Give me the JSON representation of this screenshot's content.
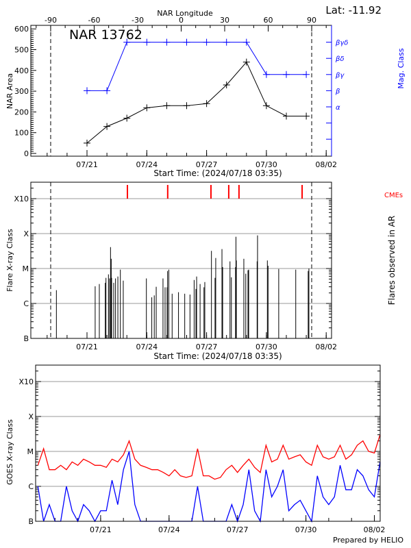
{
  "header": {
    "lat_label": "Lat: -11.92",
    "region_title": "NAR 13762"
  },
  "colors": {
    "area": "#000000",
    "mag_class": "#0000ff",
    "cme": "#ff0000",
    "goes_long": "#ff0000",
    "goes_short": "#0000ff",
    "grid": "#999999"
  },
  "chart_data": [
    {
      "type": "line",
      "title": "NAR 13762",
      "xlabel": "Start Time: (2024/07/18 03:35)",
      "x2label": "NAR Longitude",
      "ylabel": "NAR Area",
      "y2label": "Mag. Class",
      "ylim": [
        0,
        600
      ],
      "yticks": [
        "0",
        "100",
        "200",
        "300",
        "400",
        "500",
        "600"
      ],
      "x2lim": [
        -90,
        90
      ],
      "x2ticks": [
        "-90",
        "-60",
        "-30",
        "0",
        "30",
        "60",
        "90"
      ],
      "xticks": [
        "07/21",
        "07/24",
        "07/27",
        "07/30",
        "08/02"
      ],
      "mag_class_levels": [
        "α",
        "β",
        "βγ",
        "βδ",
        "βγδ"
      ],
      "x": [
        "07/21",
        "07/22",
        "07/23",
        "07/24",
        "07/25",
        "07/26",
        "07/27",
        "07/28",
        "07/29",
        "07/30",
        "07/31",
        "08/01"
      ],
      "series": [
        {
          "values": [
            50,
            130,
            170,
            220,
            230,
            230,
            240,
            330,
            440,
            230,
            180,
            180
          ]
        },
        {
          "values": [
            "β",
            "β",
            "βγδ",
            "βγδ",
            "βγδ",
            "βγδ",
            "βγδ",
            "βγδ",
            "βγδ",
            "βγ",
            "βγ",
            "βγ"
          ]
        }
      ],
      "limb_markers_longitude": [
        -90,
        90
      ]
    },
    {
      "type": "bar",
      "xlabel": "Start Time: (2024/07/18 03:35)",
      "ylabel": "Flare X-ray Class",
      "y2label": "Flares observed in AR",
      "cme_label": "CMEs",
      "yticks": [
        "B",
        "C",
        "M",
        "X",
        "X10"
      ],
      "xticks": [
        "07/21",
        "07/24",
        "07/27",
        "07/30",
        "08/02"
      ],
      "cmes": [
        "07/23 00:40",
        "07/25 01:10",
        "07/27 05:15",
        "07/28 02:40",
        "07/28 15:00",
        "07/31 19:00"
      ],
      "flares": [
        [
          "07/19 11:10",
          "C2.4"
        ],
        [
          "07/21 09:50",
          "C3.1"
        ],
        [
          "07/21 14:50",
          "C3.6"
        ],
        [
          "07/21 22:00",
          "C3.9"
        ],
        [
          "07/21 22:50",
          "C5.4"
        ],
        [
          "07/22 01:50",
          "C6.8"
        ],
        [
          "07/22 03:10",
          "C5.2"
        ],
        [
          "07/22 04:20",
          "M4.1"
        ],
        [
          "07/22 05:10",
          "M1.9"
        ],
        [
          "07/22 05:40",
          "C5.4"
        ],
        [
          "07/22 08:10",
          "C3.9"
        ],
        [
          "07/22 10:20",
          "C5.2"
        ],
        [
          "07/22 13:10",
          "C5.9"
        ],
        [
          "07/22 16:10",
          "C9.3"
        ],
        [
          "07/22 19:40",
          "C4.5"
        ],
        [
          "07/23 23:30",
          "C5.2"
        ],
        [
          "07/24 06:00",
          "C1.5"
        ],
        [
          "07/24 09:00",
          "C1.7"
        ],
        [
          "07/24 11:20",
          "C3.0"
        ],
        [
          "07/24 19:30",
          "C5.2"
        ],
        [
          "07/24 22:00",
          "C2.9"
        ],
        [
          "07/25 00:30",
          "C2.9"
        ],
        [
          "07/25 01:00",
          "C8.5"
        ],
        [
          "07/25 02:30",
          "C9.3"
        ],
        [
          "07/25 06:30",
          "C1.9"
        ],
        [
          "07/25 14:10",
          "C2.1"
        ],
        [
          "07/25 21:40",
          "C1.9"
        ],
        [
          "07/26 04:00",
          "C1.8"
        ],
        [
          "07/26 09:00",
          "C4.7"
        ],
        [
          "07/26 11:10",
          "C2.6"
        ],
        [
          "07/26 12:00",
          "C5.9"
        ],
        [
          "07/26 16:10",
          "C3.6"
        ],
        [
          "07/26 20:50",
          "C2.9"
        ],
        [
          "07/26 21:50",
          "C4.1"
        ],
        [
          "07/27 05:50",
          "M3.2"
        ],
        [
          "07/27 10:10",
          "C5.4"
        ],
        [
          "07/27 11:00",
          "M2.0"
        ],
        [
          "07/27 18:30",
          "M3.6"
        ],
        [
          "07/27 19:20",
          "M1.1"
        ],
        [
          "07/28 04:10",
          "M1.6"
        ],
        [
          "07/28 05:50",
          "C5.6"
        ],
        [
          "07/28 10:50",
          "M1.1"
        ],
        [
          "07/28 11:20",
          "M8.1"
        ],
        [
          "07/28 11:50",
          "M1.7"
        ],
        [
          "07/28 20:50",
          "M1.9"
        ],
        [
          "07/28 23:10",
          "C7.1"
        ],
        [
          "07/29 01:50",
          "C8.9"
        ],
        [
          "07/29 02:40",
          "C9.3"
        ],
        [
          "07/29 12:50",
          "M1.6"
        ],
        [
          "07/29 13:20",
          "M8.9"
        ],
        [
          "07/30 01:10",
          "M1.7"
        ],
        [
          "07/30 02:00",
          "M1.2"
        ],
        [
          "07/30 14:50",
          "C9.7"
        ],
        [
          "07/31 11:20",
          "C9.3"
        ],
        [
          "08/01 02:20",
          "C8.5"
        ],
        [
          "08/01 03:10",
          "M1.0"
        ]
      ]
    },
    {
      "type": "line",
      "ylabel": "GOES X-ray Class",
      "yticks": [
        "B",
        "C",
        "M",
        "X",
        "X10"
      ],
      "xticks": [
        "07/21",
        "07/24",
        "07/27",
        "07/30",
        "08/02"
      ],
      "times": [
        "07/18 06:00",
        "07/18 12:00",
        "07/18 18:00",
        "07/19 00:00",
        "07/19 06:00",
        "07/19 12:00",
        "07/19 18:00",
        "07/20 00:00",
        "07/20 06:00",
        "07/20 12:00",
        "07/20 18:00",
        "07/21 00:00",
        "07/21 06:00",
        "07/21 12:00",
        "07/21 18:00",
        "07/22 00:00",
        "07/22 06:00",
        "07/22 12:00",
        "07/22 18:00",
        "07/23 00:00",
        "07/23 06:00",
        "07/23 12:00",
        "07/23 18:00",
        "07/24 00:00",
        "07/24 06:00",
        "07/24 12:00",
        "07/24 18:00",
        "07/25 00:00",
        "07/25 06:00",
        "07/25 12:00",
        "07/25 18:00",
        "07/26 00:00",
        "07/26 06:00",
        "07/26 12:00",
        "07/26 18:00",
        "07/27 00:00",
        "07/27 06:00",
        "07/27 12:00",
        "07/27 18:00",
        "07/28 00:00",
        "07/28 06:00",
        "07/28 12:00",
        "07/28 18:00",
        "07/29 00:00",
        "07/29 06:00",
        "07/29 12:00",
        "07/29 18:00",
        "07/30 00:00",
        "07/30 06:00",
        "07/30 12:00",
        "07/30 18:00",
        "07/31 00:00",
        "07/31 06:00",
        "07/31 12:00",
        "07/31 18:00",
        "08/01 00:00",
        "08/01 06:00",
        "08/01 12:00",
        "08/01 18:00",
        "08/02 00:00",
        "08/02 06:00"
      ],
      "series": [
        {
          "values": [
            "C4.0",
            "M1.2",
            "C3.0",
            "C3.0",
            "C4.0",
            "C3.0",
            "C5.0",
            "C4.0",
            "C6.0",
            "C5.0",
            "C4.0",
            "C4.0",
            "C3.5",
            "C6.0",
            "C5.0",
            "C8.0",
            "M2.0",
            "C6.0",
            "C4.0",
            "C3.5",
            "C3.0",
            "C3.0",
            "C2.5",
            "C2.0",
            "C3.0",
            "C2.0",
            "C1.8",
            "C2.0",
            "M1.2",
            "C2.0",
            "C2.0",
            "C1.6",
            "C1.8",
            "C3.0",
            "C4.0",
            "C2.5",
            "C4.0",
            "C6.0",
            "C3.5",
            "C2.5",
            "M1.5",
            "C5.0",
            "C6.0",
            "M1.5",
            "C6.0",
            "C7.0",
            "C8.0",
            "C5.0",
            "C4.0",
            "M1.5",
            "C7.0",
            "C6.0",
            "C7.0",
            "M1.5",
            "C6.0",
            "C8.0",
            "M1.5",
            "M2.0",
            "M1.0",
            "C9.0",
            "M3.0"
          ]
        },
        {
          "values": [
            "C1.0",
            "B1.0",
            "B3.0",
            "B1.0",
            "B1.0",
            "C1.0",
            "B2.0",
            "B1.0",
            "B3.0",
            "B2.0",
            "B1.0",
            "B2.0",
            "B2.0",
            "C1.5",
            "B3.0",
            "C3.0",
            "M1.0",
            "B3.0",
            "B1.0",
            "B1.0",
            "B1.0",
            "B1.0",
            "B1.0",
            "B1.0",
            "B1.0",
            "B1.0",
            "B1.0",
            "B1.0",
            "C1.0",
            "B1.0",
            "B1.0",
            "B1.0",
            "B1.0",
            "B1.0",
            "B3.0",
            "B1.0",
            "B3.0",
            "C3.0",
            "B2.0",
            "B1.0",
            "C3.0",
            "B5.0",
            "C1.0",
            "C3.0",
            "B2.0",
            "B3.0",
            "B4.0",
            "B2.0",
            "B1.0",
            "C2.0",
            "B5.0",
            "B3.0",
            "B5.0",
            "C4.0",
            "B8.0",
            "B8.0",
            "C3.0",
            "C2.0",
            "B8.0",
            "B5.0",
            "C5.0"
          ]
        }
      ],
      "footer": "Prepared by HELIO"
    }
  ]
}
